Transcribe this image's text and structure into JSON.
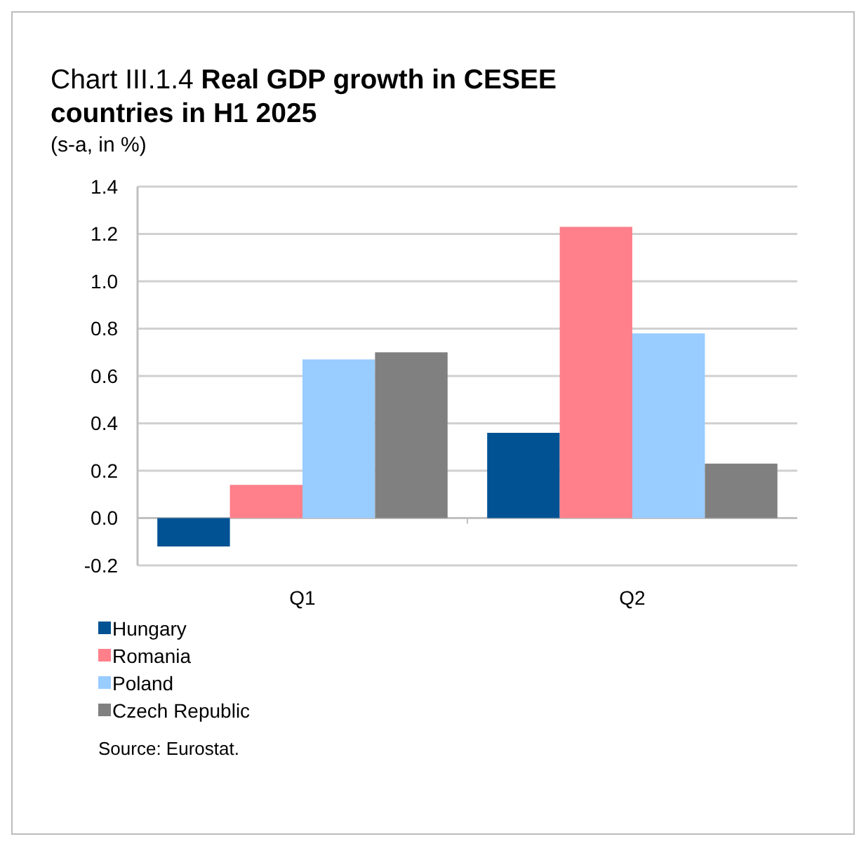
{
  "chart_data": {
    "type": "bar",
    "title": "Chart III.1.4 Real GDP growth in CESEE countries in H1 2025",
    "subtitle": "(s-a, in %)",
    "categories": [
      "Q1",
      "Q2"
    ],
    "series": [
      {
        "name": "Hungary",
        "color": "#005293",
        "values": [
          -0.12,
          0.36
        ]
      },
      {
        "name": "Romania",
        "color": "#ff808b",
        "values": [
          0.14,
          1.23
        ]
      },
      {
        "name": "Poland",
        "color": "#99ccff",
        "values": [
          0.67,
          0.78
        ]
      },
      {
        "name": "Czech Republic",
        "color": "#808080",
        "values": [
          0.7,
          0.23
        ]
      }
    ],
    "ylim": [
      -0.2,
      1.4
    ],
    "yticks": [
      {
        "value": -0.2,
        "label": "-0.2"
      },
      {
        "value": 0,
        "label": "0.0"
      },
      {
        "value": 0.2,
        "label": "0.2"
      },
      {
        "value": 0.4,
        "label": "0.4"
      },
      {
        "value": 0.6,
        "label": "0.6"
      },
      {
        "value": 0.8,
        "label": "0.8"
      },
      {
        "value": 1,
        "label": "1.0"
      },
      {
        "value": 1.2,
        "label": "1.2"
      },
      {
        "value": 1.4,
        "label": "1.4"
      }
    ],
    "grid": "y",
    "legend": "bottom",
    "annotations": [
      "Source: Eurostat."
    ]
  }
}
